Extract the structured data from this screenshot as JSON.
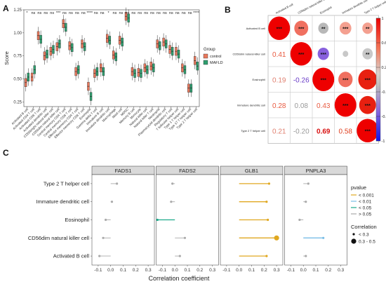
{
  "panels": {
    "a": {
      "label": "A"
    },
    "b": {
      "label": "B"
    },
    "c": {
      "label": "C"
    }
  },
  "colors": {
    "control": "#e8785c",
    "mafld": "#2e9e6e",
    "p001": "#e0a820",
    "p01": "#79bde6",
    "p05": "#1ca98a",
    "pns": "#aaaaaa",
    "cor_pos": "#f00000",
    "cor_neg": "#1010ee"
  },
  "chart_data": [
    {
      "type": "box",
      "panel": "A",
      "ylabel": "Score",
      "ylim": [
        0.2,
        1.25
      ],
      "yticks": [
        "0.25",
        "0.50",
        "0.75",
        "1.00",
        "1.25"
      ],
      "ytick_values": [
        0.25,
        0.5,
        0.75,
        1.0,
        1.25
      ],
      "legend": {
        "title": "Group",
        "entries": [
          "control",
          "MAFLD"
        ],
        "placement": "right"
      },
      "categories": [
        "Activated B cell",
        "Activated CD4 T cell",
        "Activated CD8 T cell",
        "Activated dendritic cell",
        "CD56bright natural killer cell",
        "CD56dim natural killer cell",
        "Central memory CD4 T cell",
        "Central memory CD8 T cell",
        "Effector memeory CD4 T cell",
        "Effector memeory CD8 T cell",
        "Eosinophil",
        "Gamma delta T cell",
        "Immature B cell",
        "Immature dendritic cell",
        "Macrophage",
        "Mast cell",
        "MDSC",
        "Memory B cell",
        "Monocyte",
        "Natural killer cell",
        "Natural killer T cell",
        "Neutrophil",
        "Plasmacytoid dendritic cell",
        "Regulatory T cell",
        "T follicular helper cell",
        "Type 1 T helper cell",
        "Type 17 T helper cell",
        "Type 2 T helper cell"
      ],
      "significance": [
        "*",
        "ns",
        "ns",
        "ns",
        "ns",
        "***",
        "ns",
        "ns",
        "ns",
        "ns",
        "****",
        "ns",
        "ns",
        "*",
        "ns",
        "ns",
        "ns",
        "ns",
        "ns",
        "ns",
        "ns",
        "ns",
        "ns",
        "ns",
        "ns",
        "ns",
        "ns",
        "****"
      ],
      "series": [
        {
          "name": "control",
          "medians": [
            0.46,
            0.52,
            0.97,
            0.75,
            0.8,
            0.85,
            1.1,
            0.86,
            0.58,
            0.88,
            0.42,
            0.56,
            0.62,
            0.94,
            0.76,
            0.92,
            1.18,
            0.58,
            0.57,
            0.62,
            0.64,
            0.88,
            0.9,
            0.82,
            0.8,
            0.62,
            0.4,
            0.7
          ]
        },
        {
          "name": "MAFLD",
          "medians": [
            0.52,
            0.6,
            0.93,
            0.77,
            0.82,
            0.88,
            1.06,
            0.84,
            0.6,
            0.85,
            0.31,
            0.58,
            0.58,
            0.92,
            0.74,
            0.9,
            1.16,
            0.56,
            0.56,
            0.6,
            0.62,
            0.86,
            0.88,
            0.8,
            0.77,
            0.6,
            0.4,
            0.64
          ]
        }
      ]
    },
    {
      "type": "heatmap",
      "panel": "B",
      "labels": [
        "Activated B cell",
        "CD56dim natural killer cell",
        "Eosinophil",
        "Immature dendritic cell",
        "Type 2 T helper cell"
      ],
      "lower_values": [
        [
          null,
          null,
          null,
          null,
          null
        ],
        [
          "0.41",
          null,
          null,
          null,
          null
        ],
        [
          "0.19",
          "-0.26",
          null,
          null,
          null
        ],
        [
          "0.28",
          "0.08",
          "0.43",
          null,
          null
        ],
        [
          "0.21",
          "-0.20",
          "0.69",
          "0.58",
          null
        ]
      ],
      "upper_values": [
        [
          1,
          0.41,
          0.19,
          0.28,
          0.21
        ],
        [
          0.41,
          1,
          -0.26,
          0.08,
          -0.2
        ],
        [
          0.19,
          -0.26,
          1,
          0.43,
          0.69
        ],
        [
          0.28,
          0.08,
          0.43,
          1,
          0.58
        ],
        [
          0.21,
          -0.2,
          0.69,
          0.58,
          1
        ]
      ],
      "upper_stars": [
        [
          "***",
          "***",
          "**",
          "***",
          "**"
        ],
        [
          "***",
          "***",
          "***",
          "",
          "**"
        ],
        [
          "**",
          "***",
          "***",
          "***",
          "***"
        ],
        [
          "***",
          "",
          "***",
          "***",
          "***"
        ],
        [
          "**",
          "**",
          "***",
          "***",
          "***"
        ]
      ],
      "colorbar": {
        "ticks": [
          "1",
          "0.6",
          "0.2",
          "-0.2",
          "-0.6",
          "-1"
        ],
        "tick_values": [
          1,
          0.6,
          0.2,
          -0.2,
          -0.6,
          -1
        ],
        "range": [
          -1,
          1
        ],
        "placement": "right"
      }
    },
    {
      "type": "lollipop",
      "panel": "C",
      "xlabel": "Correlation coefficient",
      "xlim": [
        -0.15,
        0.35
      ],
      "xticks": [
        "-0.1",
        "0.0",
        "0.1",
        "0.2",
        "0.3"
      ],
      "xtick_values": [
        -0.1,
        0.0,
        0.1,
        0.2,
        0.3
      ],
      "facets": [
        "FADS1",
        "FADS2",
        "GLB1",
        "PNPLA3"
      ],
      "rows": [
        "Type 2 T helper cell",
        "Immature dendritic cell",
        "Eosinophil",
        "CD56dim natural killer cell",
        "Activated B cell"
      ],
      "values": [
        [
          0.05,
          -0.02,
          0.24,
          0.04
        ],
        [
          0.01,
          -0.03,
          0.22,
          0.02
        ],
        [
          -0.04,
          -0.14,
          0.23,
          -0.03
        ],
        [
          -0.06,
          0.08,
          0.3,
          0.16
        ],
        [
          -0.09,
          0.04,
          0.22,
          0.02
        ]
      ],
      "pvalue_class": [
        [
          "pns",
          "pns",
          "p001",
          "pns"
        ],
        [
          "pns",
          "pns",
          "p001",
          "pns"
        ],
        [
          "pns",
          "p05",
          "p001",
          "pns"
        ],
        [
          "pns",
          "pns",
          "p001",
          "p01"
        ],
        [
          "pns",
          "pns",
          "p001",
          "pns"
        ]
      ],
      "size_class": [
        [
          "small",
          "small",
          "small",
          "small"
        ],
        [
          "small",
          "small",
          "small",
          "small"
        ],
        [
          "small",
          "small",
          "small",
          "small"
        ],
        [
          "small",
          "small",
          "large",
          "small"
        ],
        [
          "small",
          "small",
          "small",
          "small"
        ]
      ],
      "legend": {
        "pvalue_title": "pvalue",
        "pvalue_entries": [
          {
            "label": "< 0.001",
            "key": "p001"
          },
          {
            "label": "< 0.01",
            "key": "p01"
          },
          {
            "label": "< 0.05",
            "key": "p05"
          },
          {
            "label": "> 0.05",
            "key": "pns"
          }
        ],
        "size_title": "Correlation",
        "size_entries": [
          "< 0.3",
          "0.3 - 0.5"
        ],
        "placement": "right"
      }
    }
  ]
}
